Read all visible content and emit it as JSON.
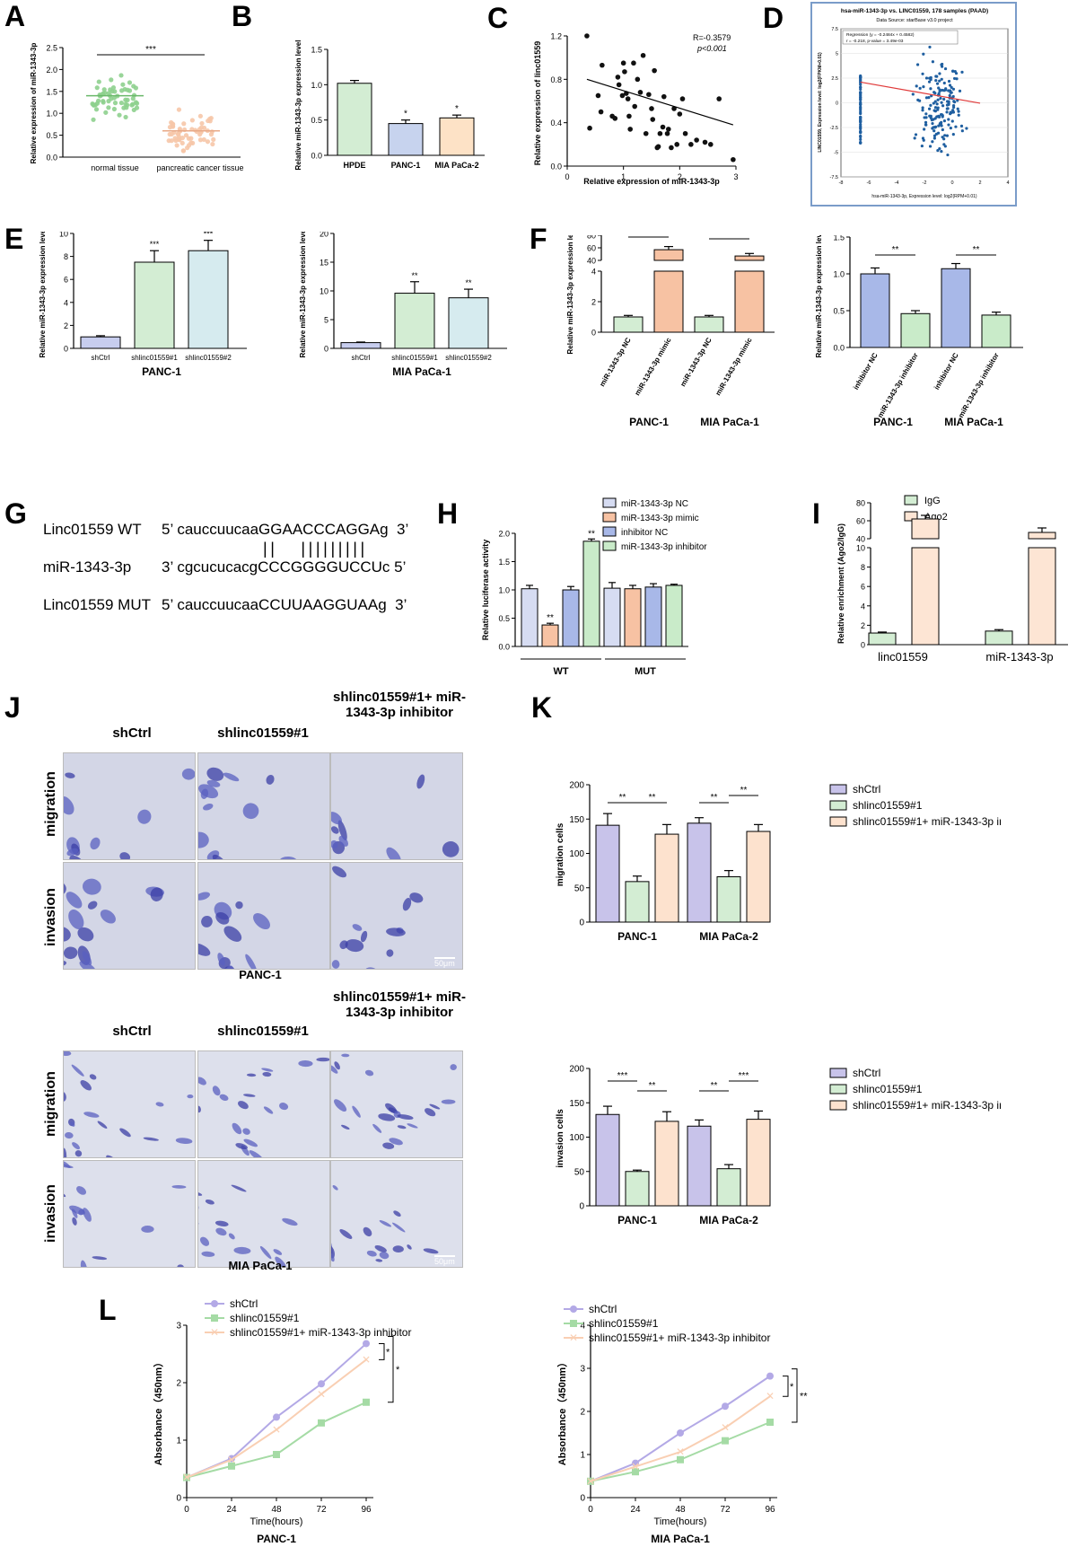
{
  "panels": {
    "A": "A",
    "B": "B",
    "C": "C",
    "D": "D",
    "E": "E",
    "F": "F",
    "G": "G",
    "H": "H",
    "I": "I",
    "J": "J",
    "K": "K",
    "L": "L"
  },
  "chart_data": [
    {
      "id": "A",
      "type": "scatter",
      "ylabel": "Relative expression of miR-1343-3p",
      "categories": [
        "normal tissue",
        "pancreatic cancer tissue"
      ],
      "yticks": [
        "0.0",
        "0.5",
        "1.0",
        "1.5",
        "2.0",
        "2.5"
      ],
      "ylim": [
        0,
        2.5
      ],
      "means": [
        1.4,
        0.6
      ],
      "sig": "***",
      "colors": [
        "#8ed08e",
        "#f6c6a8"
      ]
    },
    {
      "id": "B",
      "type": "bar",
      "ylabel": "Relative miR-1343-3p expression level",
      "categories": [
        "HPDE",
        "PANC-1",
        "MIA PaCa-2"
      ],
      "values": [
        1.02,
        0.45,
        0.53
      ],
      "errors": [
        0.04,
        0.05,
        0.04
      ],
      "sig": [
        "",
        "*",
        "*"
      ],
      "yticks": [
        "0.0",
        "0.5",
        "1.0",
        "1.5"
      ],
      "ylim": [
        0,
        1.5
      ],
      "colors": [
        "#d3edd3",
        "#c7d3ee",
        "#fde2c6"
      ]
    },
    {
      "id": "C",
      "type": "scatter",
      "xlabel": "Relative expression of miR-1343-3p",
      "ylabel": "Relative expression of linc01559",
      "r_text": "R=-0.3579",
      "p_text": "p<0.001",
      "xticks": [
        "0",
        "1",
        "2",
        "3"
      ],
      "yticks": [
        "0.0",
        "0.4",
        "0.8",
        "1.2"
      ],
      "xlim": [
        0,
        3
      ],
      "ylim": [
        0,
        1.2
      ],
      "points": [
        [
          0.35,
          1.2
        ],
        [
          0.4,
          0.35
        ],
        [
          0.55,
          0.65
        ],
        [
          0.6,
          0.5
        ],
        [
          0.62,
          0.93
        ],
        [
          0.8,
          0.46
        ],
        [
          0.85,
          0.44
        ],
        [
          0.9,
          0.82
        ],
        [
          0.92,
          0.75
        ],
        [
          0.98,
          0.65
        ],
        [
          1.0,
          0.95
        ],
        [
          1.02,
          0.87
        ],
        [
          1.05,
          0.67
        ],
        [
          1.08,
          0.62
        ],
        [
          1.1,
          0.46
        ],
        [
          1.12,
          0.34
        ],
        [
          1.18,
          0.95
        ],
        [
          1.2,
          0.55
        ],
        [
          1.25,
          0.8
        ],
        [
          1.3,
          0.68
        ],
        [
          1.35,
          1.02
        ],
        [
          1.4,
          0.3
        ],
        [
          1.45,
          0.66
        ],
        [
          1.5,
          0.53
        ],
        [
          1.52,
          0.43
        ],
        [
          1.55,
          0.88
        ],
        [
          1.6,
          0.17
        ],
        [
          1.62,
          0.18
        ],
        [
          1.65,
          0.3
        ],
        [
          1.7,
          0.36
        ],
        [
          1.72,
          0.64
        ],
        [
          1.78,
          0.3
        ],
        [
          1.8,
          0.34
        ],
        [
          1.85,
          0.17
        ],
        [
          1.9,
          0.53
        ],
        [
          1.95,
          0.2
        ],
        [
          2.0,
          0.48
        ],
        [
          2.05,
          0.62
        ],
        [
          2.1,
          0.3
        ],
        [
          2.2,
          0.2
        ],
        [
          2.3,
          0.24
        ],
        [
          2.45,
          0.22
        ],
        [
          2.55,
          0.2
        ],
        [
          2.7,
          0.62
        ],
        [
          2.95,
          0.06
        ]
      ],
      "fit": [
        [
          0.35,
          0.8
        ],
        [
          2.95,
          0.38
        ]
      ]
    },
    {
      "id": "D",
      "type": "scatter",
      "title": "hsa-miR-1343-3p vs. LINC01559, 178 samples (PAAD)",
      "subtitle": "Data Source: starBase v3.0 project",
      "legend": [
        "Regression (y = -0.2484x + 0.4582)",
        "r = -0.218, p-value = 3.49e-03"
      ],
      "xlabel": "hsa-miR-1343-3p, Expression level: log2(RPM+0.01)",
      "ylabel": "LINC01559, Expression level: log2(FPKM+0.01)",
      "xticks": [
        "-8",
        "-6",
        "-4",
        "-2",
        "0",
        "2",
        "4"
      ],
      "yticks": [
        "-7.5",
        "-5",
        "-2.5",
        "0",
        "2.5",
        "5",
        "7.5"
      ],
      "xlim": [
        -8,
        4
      ],
      "ylim": [
        -7.5,
        7.5
      ]
    },
    {
      "id": "E1",
      "type": "bar",
      "caption": "PANC-1",
      "ylabel": "Relative miR-1343-3p expression level",
      "categories": [
        "shCtrl",
        "shlinc01559#1",
        "shlinc01559#2"
      ],
      "values": [
        1.0,
        7.5,
        8.5
      ],
      "errors": [
        0.1,
        1.0,
        0.9
      ],
      "sig": [
        "",
        "***",
        "***"
      ],
      "yticks": [
        "0",
        "2",
        "4",
        "6",
        "8",
        "10"
      ],
      "ylim": [
        0,
        10
      ],
      "colors": [
        "#c7cdee",
        "#d3edd3",
        "#d6ebef"
      ]
    },
    {
      "id": "E2",
      "type": "bar",
      "caption": "MIA PaCa-1",
      "ylabel": "Relative miR-1343-3p expression level",
      "categories": [
        "shCtrl",
        "shlinc01559#1",
        "shlinc01559#2"
      ],
      "values": [
        1.0,
        9.6,
        8.8
      ],
      "errors": [
        0.1,
        2.0,
        1.5
      ],
      "sig": [
        "",
        "**",
        "**"
      ],
      "yticks": [
        "0",
        "5",
        "10",
        "15",
        "20"
      ],
      "ylim": [
        0,
        20
      ],
      "colors": [
        "#c7cdee",
        "#d3edd3",
        "#d6ebef"
      ]
    },
    {
      "id": "F1",
      "type": "bar",
      "caption_left": "PANC-1",
      "caption_right": "MIA PaCa-1",
      "ylabel": "Relative miR-1343-3p expression level",
      "categories": [
        "miR-1343-3p NC",
        "miR-1343-3p mimic",
        "miR-1343-3p NC",
        "miR-1343-3p mimic"
      ],
      "values": [
        1.0,
        57,
        1.0,
        47
      ],
      "errors": [
        0.1,
        5,
        0.1,
        4
      ],
      "sig": [
        "***",
        "***"
      ],
      "yticks": [
        "0",
        "2",
        "4",
        "40",
        "60",
        "80"
      ],
      "colors": [
        "#d3edd3",
        "#f7c2a3",
        "#d3edd3",
        "#f7c2a3"
      ]
    },
    {
      "id": "F2",
      "type": "bar",
      "caption_left": "PANC-1",
      "caption_right": "MIA PaCa-1",
      "ylabel": "Relative miR-1343-3p expression level",
      "categories": [
        "inhibitor NC",
        "miR-1343-3p inhibitor",
        "inhibitor NC",
        "miR-1343-3p inhibitor"
      ],
      "values": [
        1.0,
        0.46,
        1.07,
        0.44
      ],
      "errors": [
        0.08,
        0.04,
        0.07,
        0.04
      ],
      "sig": [
        "**",
        "**"
      ],
      "yticks": [
        "0.0",
        "0.5",
        "1.0",
        "1.5"
      ],
      "ylim": [
        0,
        1.5
      ],
      "colors": [
        "#a8b8e8",
        "#c9ebc9",
        "#a8b8e8",
        "#c9ebc9"
      ]
    },
    {
      "id": "H",
      "type": "bar",
      "ylabel": "Relative luciferase activity",
      "groups": [
        "WT",
        "MUT"
      ],
      "legend": [
        "miR-1343-3p NC",
        "miR-1343-3p mimic",
        "inhibitor NC",
        "miR-1343-3p inhibitor"
      ],
      "values": [
        1.02,
        0.38,
        1.0,
        1.86,
        1.03,
        1.02,
        1.05,
        1.08
      ],
      "errors": [
        0.06,
        0.03,
        0.06,
        0.04,
        0.1,
        0.06,
        0.06,
        0.02
      ],
      "sig": [
        "",
        "**",
        "",
        "**",
        "",
        "",
        "",
        ""
      ],
      "yticks": [
        "0.0",
        "0.5",
        "1.0",
        "1.5",
        "2.0"
      ],
      "ylim": [
        0,
        2.0
      ],
      "colors": [
        "#d6dcf2",
        "#f7c2a3",
        "#a8b8e8",
        "#c9ebc9"
      ]
    },
    {
      "id": "I",
      "type": "bar",
      "ylabel": "Relative enrichment (Ago2/IgG)",
      "categories": [
        "linc01559",
        "miR-1343-3p"
      ],
      "legend": [
        "IgG",
        "Ago2"
      ],
      "values": [
        [
          1.2,
          62
        ],
        [
          1.4,
          47
        ]
      ],
      "errors": [
        [
          0.1,
          4
        ],
        [
          0.15,
          5
        ]
      ],
      "yticks": [
        "0",
        "2",
        "4",
        "6",
        "8",
        "10",
        "40",
        "60",
        "80"
      ],
      "colors": [
        "#d3edd3",
        "#fde5d4"
      ]
    },
    {
      "id": "K1",
      "type": "bar",
      "ylabel": "migration cells",
      "groups": [
        "PANC-1",
        "MIA PaCa-2"
      ],
      "legend": [
        "shCtrl",
        "shlinc01559#1",
        "shlinc01559#1+ miR-1343-3p inhibitor"
      ],
      "values": [
        [
          141,
          59,
          128
        ],
        [
          144,
          66,
          132
        ]
      ],
      "errors": [
        [
          17,
          8,
          14
        ],
        [
          8,
          9,
          10
        ]
      ],
      "sig": [
        "**",
        "**",
        "**",
        "**"
      ],
      "yticks": [
        "0",
        "50",
        "100",
        "150",
        "200"
      ],
      "ylim": [
        0,
        200
      ],
      "colors": [
        "#c8c3ea",
        "#d3edd3",
        "#fde2ce"
      ]
    },
    {
      "id": "K2",
      "type": "bar",
      "ylabel": "invasion cells",
      "groups": [
        "PANC-1",
        "MIA PaCa-2"
      ],
      "legend": [
        "shCtrl",
        "shlinc01559#1",
        "shlinc01559#1+ miR-1343-3p inhibitor"
      ],
      "values": [
        [
          133,
          50,
          123
        ],
        [
          116,
          54,
          126
        ]
      ],
      "errors": [
        [
          12,
          2,
          14
        ],
        [
          9,
          6,
          12
        ]
      ],
      "sig": [
        "***",
        "**",
        "**",
        "***"
      ],
      "yticks": [
        "0",
        "50",
        "100",
        "150",
        "200"
      ],
      "ylim": [
        0,
        200
      ],
      "colors": [
        "#c8c3ea",
        "#d3edd3",
        "#fde2ce"
      ]
    },
    {
      "id": "L1",
      "type": "line",
      "caption": "PANC-1",
      "xlabel": "Time(hours)",
      "ylabel": "Absorbance（450nm）",
      "x": [
        0,
        24,
        48,
        72,
        96
      ],
      "legend": [
        "shCtrl",
        "shlinc01559#1",
        "shlinc01559#1+ miR-1343-3p inhibitor"
      ],
      "series": [
        {
          "name": "shCtrl",
          "values": [
            0.35,
            0.68,
            1.4,
            1.98,
            2.68
          ]
        },
        {
          "name": "shlinc01559#1",
          "values": [
            0.35,
            0.55,
            0.75,
            1.3,
            1.66
          ]
        },
        {
          "name": "shlinc01559#1+ miR-1343-3p inhibitor",
          "values": [
            0.35,
            0.66,
            1.18,
            1.8,
            2.4
          ]
        }
      ],
      "sig": [
        "*",
        "*"
      ],
      "xticks": [
        "0",
        "24",
        "48",
        "72",
        "96"
      ],
      "yticks": [
        "0",
        "1",
        "2",
        "3"
      ],
      "ylim": [
        0,
        3
      ],
      "colors": [
        "#b3a9e6",
        "#a5dba5",
        "#f9cfb3"
      ]
    },
    {
      "id": "L2",
      "type": "line",
      "caption": "MIA PaCa-1",
      "xlabel": "Time(hours)",
      "ylabel": "Absorbance（450nm）",
      "x": [
        0,
        24,
        48,
        72,
        96
      ],
      "legend": [
        "shCtrl",
        "shlinc01559#1",
        "shlinc01559#1+ miR-1343-3p inhibitor"
      ],
      "series": [
        {
          "name": "shCtrl",
          "values": [
            0.38,
            0.8,
            1.5,
            2.12,
            2.82
          ]
        },
        {
          "name": "shlinc01559#1",
          "values": [
            0.38,
            0.6,
            0.88,
            1.32,
            1.75
          ]
        },
        {
          "name": "shlinc01559#1+ miR-1343-3p inhibitor",
          "values": [
            0.38,
            0.72,
            1.06,
            1.62,
            2.35
          ]
        }
      ],
      "sig": [
        "*",
        "**"
      ],
      "xticks": [
        "0",
        "24",
        "48",
        "72",
        "96"
      ],
      "yticks": [
        "0",
        "1",
        "2",
        "3",
        "4"
      ],
      "ylim": [
        0,
        4
      ],
      "colors": [
        "#b3a9e6",
        "#a5dba5",
        "#f9cfb3"
      ]
    }
  ],
  "G": {
    "rows": [
      {
        "name": "Linc01559 WT",
        "seq": "5’ cauccuucaaGGAACCCAGGAg  3’"
      },
      {
        "name": "miR-1343-3p",
        "seq": "3’ cgcucucacgCCCGGGGUCCUc 5’"
      },
      {
        "name": "Linc01559 MUT",
        "seq": "5’ cauccuucaaCCUUAAGGUAAg  3’"
      }
    ],
    "pairing": "||   |||||||||"
  },
  "J": {
    "columns": [
      "shCtrl",
      "shlinc01559#1",
      "shlinc01559#1+ miR-1343-3p inhibitor"
    ],
    "rows": [
      "migration",
      "invasion"
    ],
    "caption_top": "PANC-1",
    "caption_bottom": "MIA PaCa-1",
    "scale": "50μm"
  }
}
